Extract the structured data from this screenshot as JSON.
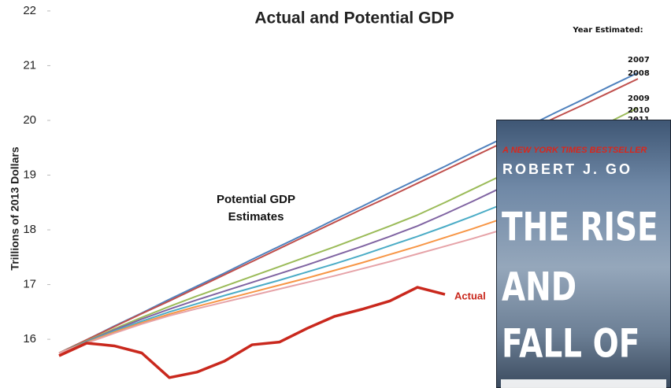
{
  "chart_data": {
    "type": "line",
    "title": "Actual and Potential GDP",
    "y_label": "Trillions of 2013 Dollars",
    "legend_title": "Year Estimated:",
    "annotations": [
      "Potential GDP Estimates",
      "Actual"
    ],
    "categories": [
      null,
      null,
      null,
      null,
      null,
      null,
      null,
      null,
      null,
      null,
      null,
      null,
      null,
      null,
      null,
      null,
      null,
      null,
      null,
      null,
      null,
      null
    ],
    "ylim": [
      15.11,
      22.2
    ],
    "yticks": [
      16,
      17,
      18,
      19,
      20,
      21,
      22
    ],
    "grid": false,
    "series": [
      {
        "name": "2007",
        "color": "#4f81bd",
        "values": [
          15.75,
          15.99,
          16.24,
          16.48,
          16.73,
          16.97,
          17.21,
          17.46,
          17.7,
          17.94,
          18.19,
          18.43,
          18.68,
          18.92,
          19.16,
          19.41,
          19.65,
          19.89,
          20.14,
          20.38,
          20.63,
          20.87
        ]
      },
      {
        "name": "2008",
        "color": "#c0504d",
        "values": [
          15.75,
          15.99,
          16.23,
          16.47,
          16.7,
          16.94,
          17.18,
          17.42,
          17.66,
          17.9,
          18.14,
          18.38,
          18.61,
          18.85,
          19.09,
          19.33,
          19.57,
          19.81,
          20.05,
          20.28,
          20.52,
          20.76
        ]
      },
      {
        "name": "2009",
        "color": "#9bbb59",
        "values": [
          15.75,
          15.97,
          16.19,
          16.4,
          16.6,
          16.79,
          16.97,
          17.15,
          17.33,
          17.51,
          17.69,
          17.88,
          18.07,
          18.27,
          18.5,
          18.74,
          18.98,
          19.23,
          19.48,
          19.73,
          19.98,
          20.23
        ]
      },
      {
        "name": "2010",
        "color": "#8064a2",
        "values": [
          15.75,
          15.96,
          16.17,
          16.37,
          16.55,
          16.72,
          16.88,
          17.04,
          17.2,
          17.36,
          17.53,
          17.7,
          17.88,
          18.07,
          18.29,
          18.52,
          18.76,
          19.01,
          19.26,
          19.52,
          19.78,
          20.04
        ]
      },
      {
        "name": "2011",
        "color": "#4bacc6",
        "values": [
          15.75,
          15.95,
          16.15,
          16.33,
          16.5,
          16.65,
          16.8,
          16.94,
          17.08,
          17.23,
          17.38,
          17.54,
          17.71,
          17.88,
          18.06,
          18.25,
          18.45,
          18.65,
          18.86,
          19.07,
          19.28,
          19.5
        ]
      },
      {
        "color": "#f79646",
        "values": [
          15.75,
          15.94,
          16.13,
          16.3,
          16.46,
          16.6,
          16.73,
          16.86,
          16.99,
          17.12,
          17.26,
          17.4,
          17.55,
          17.7,
          17.86,
          18.02,
          18.19,
          18.36,
          18.54,
          18.72,
          18.9,
          19.08
        ]
      },
      {
        "color": "#e6a3a8",
        "values": [
          15.75,
          15.93,
          16.11,
          16.28,
          16.43,
          16.56,
          16.68,
          16.8,
          16.92,
          17.04,
          17.16,
          17.29,
          17.42,
          17.56,
          17.7,
          17.84,
          17.99,
          18.14,
          18.3,
          18.46,
          18.62,
          18.78
        ]
      },
      {
        "color": "#c9281d",
        "values": [
          15.7,
          15.93,
          15.88,
          15.75,
          15.3,
          15.4,
          15.6,
          15.9,
          15.95,
          16.2,
          16.42,
          16.55,
          16.7,
          16.95,
          16.82,
          null,
          null,
          null,
          null,
          null,
          null,
          null
        ]
      }
    ]
  },
  "book": {
    "tagline": "A NEW YORK TIMES BESTSELLER",
    "author": "ROBERT J. GO",
    "title_lines": [
      "THE RISE",
      "AND",
      "FALL OF"
    ]
  }
}
